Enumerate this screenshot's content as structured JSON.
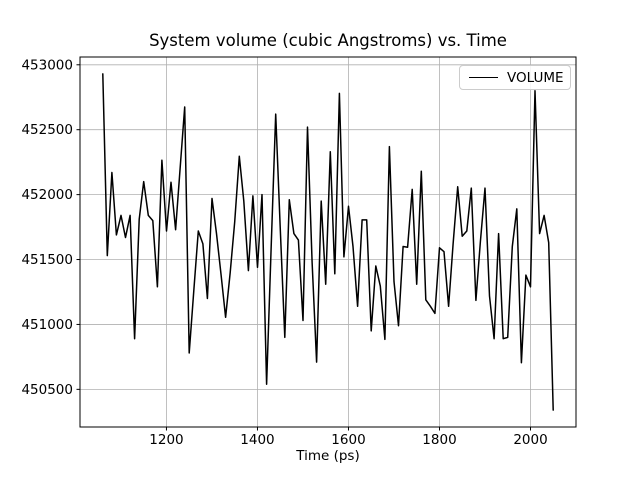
{
  "chart_data": {
    "type": "line",
    "title": "System volume (cubic Angstroms) vs. Time",
    "xlabel": "Time (ps)",
    "ylabel": "",
    "xlim": [
      1010,
      2100
    ],
    "ylim": [
      450210,
      453060
    ],
    "xticks": [
      1200,
      1400,
      1600,
      1800,
      2000
    ],
    "yticks": [
      450500,
      451000,
      451500,
      452000,
      452500,
      453000
    ],
    "grid": true,
    "grid_color": "#b0b0b0",
    "line_color": "#000000",
    "background_color": "#ffffff",
    "legend": {
      "position": "upper right",
      "entries": [
        "VOLUME"
      ]
    },
    "series": [
      {
        "name": "VOLUME",
        "x": [
          1060,
          1070,
          1080,
          1090,
          1100,
          1110,
          1120,
          1130,
          1140,
          1150,
          1160,
          1170,
          1180,
          1190,
          1200,
          1210,
          1220,
          1230,
          1240,
          1250,
          1260,
          1270,
          1280,
          1290,
          1300,
          1310,
          1320,
          1330,
          1340,
          1350,
          1360,
          1370,
          1380,
          1390,
          1400,
          1410,
          1420,
          1430,
          1440,
          1450,
          1460,
          1470,
          1480,
          1490,
          1500,
          1510,
          1520,
          1530,
          1540,
          1550,
          1560,
          1570,
          1580,
          1590,
          1600,
          1610,
          1620,
          1630,
          1640,
          1650,
          1660,
          1670,
          1680,
          1690,
          1700,
          1710,
          1720,
          1730,
          1740,
          1750,
          1760,
          1770,
          1780,
          1790,
          1800,
          1810,
          1820,
          1830,
          1840,
          1850,
          1860,
          1870,
          1880,
          1890,
          1900,
          1910,
          1920,
          1930,
          1940,
          1950,
          1960,
          1970,
          1980,
          1990,
          2000,
          2010,
          2020,
          2030,
          2040,
          2050
        ],
        "y": [
          452930,
          451530,
          452170,
          451690,
          451840,
          451670,
          451840,
          450890,
          451810,
          452100,
          451840,
          451800,
          451290,
          452265,
          451720,
          452095,
          451730,
          452200,
          452675,
          450780,
          451260,
          451720,
          451620,
          451200,
          451970,
          451700,
          451380,
          451055,
          451400,
          451790,
          452295,
          451950,
          451415,
          451990,
          451440,
          452000,
          450540,
          451580,
          452620,
          451750,
          450900,
          451960,
          451700,
          451650,
          451030,
          452520,
          451480,
          450710,
          451950,
          451310,
          452330,
          451390,
          452780,
          451520,
          451910,
          451600,
          451140,
          451805,
          451805,
          450950,
          451450,
          451295,
          450885,
          452370,
          451330,
          450990,
          451600,
          451595,
          452040,
          451310,
          452180,
          451190,
          451140,
          451085,
          451590,
          451560,
          451140,
          451620,
          452060,
          451680,
          451720,
          452050,
          451185,
          451640,
          452050,
          451220,
          450890,
          451700,
          450890,
          450900,
          451600,
          451890,
          450705,
          451380,
          451290,
          452800,
          451700,
          451840,
          451630,
          450340
        ]
      }
    ]
  }
}
